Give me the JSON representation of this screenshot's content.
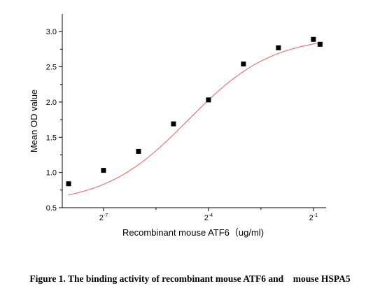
{
  "chart_data": {
    "type": "scatter",
    "xscale": "log2",
    "xlabel": "Recombinant mouse ATF6（ug/ml)",
    "ylabel": "Mean OD value",
    "xlim": [
      0.00345,
      0.643
    ],
    "ylim": [
      0.5,
      3.25
    ],
    "x_ticks": [
      {
        "value": 0.0078125,
        "base": "2",
        "exp": "-7"
      },
      {
        "value": 0.0625,
        "base": "2",
        "exp": "-4"
      },
      {
        "value": 0.5,
        "base": "2",
        "exp": "-1"
      }
    ],
    "y_ticks": [
      {
        "value": 0.5,
        "label": "0.5"
      },
      {
        "value": 1.0,
        "label": "1.0"
      },
      {
        "value": 1.5,
        "label": "1.5"
      },
      {
        "value": 2.0,
        "label": "2.0"
      },
      {
        "value": 2.5,
        "label": "2.5"
      },
      {
        "value": 3.0,
        "label": "3.0"
      }
    ],
    "series": [
      {
        "marker": "square",
        "color": "#000000",
        "points": [
          {
            "x": 0.00391,
            "y": 0.84
          },
          {
            "x": 0.00781,
            "y": 1.03
          },
          {
            "x": 0.01563,
            "y": 1.3
          },
          {
            "x": 0.03125,
            "y": 1.69
          },
          {
            "x": 0.0625,
            "y": 2.03
          },
          {
            "x": 0.125,
            "y": 2.54
          },
          {
            "x": 0.25,
            "y": 2.77
          },
          {
            "x": 0.5,
            "y": 2.89
          },
          {
            "x": 0.57,
            "y": 2.82
          }
        ]
      }
    ],
    "fit_curve": {
      "type": "4PL",
      "color": "#ef6b6b",
      "bottom": 0.55,
      "top": 2.94,
      "ec50": 0.0418,
      "hill": 1.2
    }
  },
  "caption": "Figure 1. The binding activity of recombinant mouse ATF6 and    mouse HSPA5"
}
